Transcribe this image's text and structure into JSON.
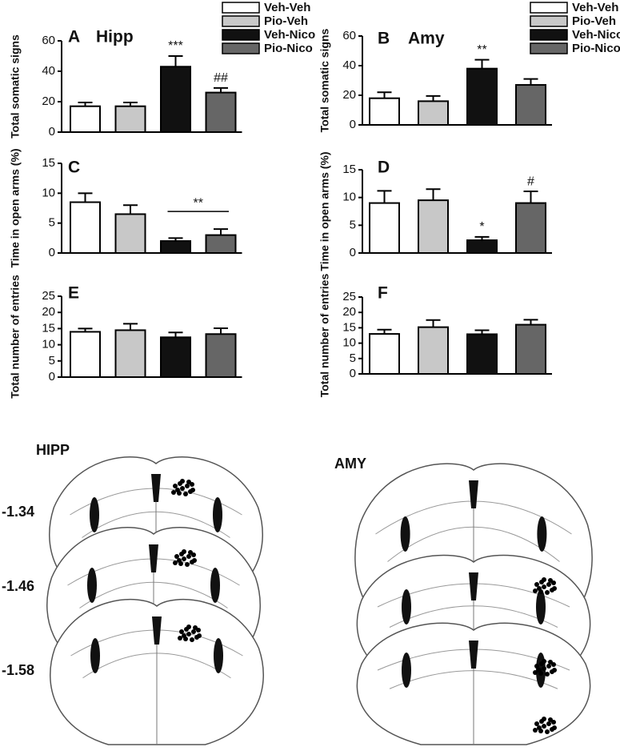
{
  "chart_data": [
    {
      "type": "bar",
      "panel": "A",
      "title": "Hipp",
      "ylabel": "Total somatic signs",
      "categories": [
        "Veh-Veh",
        "Pio-Veh",
        "Veh-Nico",
        "Pio-Nico"
      ],
      "legend": true,
      "colors": [
        "#ffffff",
        "#c8c8c8",
        "#111111",
        "#666666"
      ],
      "values": [
        17,
        17,
        43,
        26
      ],
      "errors": [
        2.5,
        2.5,
        7,
        3
      ],
      "value_annotations": [
        null,
        null,
        "***",
        "##"
      ],
      "ylim": [
        0,
        60
      ],
      "yticks": [
        0,
        20,
        40,
        60
      ]
    },
    {
      "type": "bar",
      "panel": "B",
      "title": "Amy",
      "ylabel": "Total somatic signs",
      "categories": [
        "Veh-Veh",
        "Pio-Veh",
        "Veh-Nico",
        "Pio-Nico"
      ],
      "legend": true,
      "colors": [
        "#ffffff",
        "#c8c8c8",
        "#111111",
        "#666666"
      ],
      "values": [
        18,
        16,
        38,
        27
      ],
      "errors": [
        4,
        3.5,
        6,
        4
      ],
      "value_annotations": [
        null,
        null,
        "**",
        null
      ],
      "ylim": [
        0,
        60
      ],
      "yticks": [
        0,
        20,
        40,
        60
      ]
    },
    {
      "type": "bar",
      "panel": "C",
      "ylabel": "Time in open arms (%)",
      "colors": [
        "#ffffff",
        "#c8c8c8",
        "#111111",
        "#666666"
      ],
      "values": [
        8.5,
        6.5,
        2,
        3
      ],
      "errors": [
        1.5,
        1.5,
        0.5,
        1
      ],
      "bracket": {
        "label": "**",
        "span": [
          2,
          3
        ]
      },
      "ylim": [
        0,
        15
      ],
      "yticks": [
        0,
        5,
        10,
        15
      ]
    },
    {
      "type": "bar",
      "panel": "D",
      "ylabel": "Time in open arms (%)",
      "colors": [
        "#ffffff",
        "#c8c8c8",
        "#111111",
        "#666666"
      ],
      "values": [
        9,
        9.5,
        2.3,
        9
      ],
      "errors": [
        2.2,
        2,
        0.6,
        2.1
      ],
      "value_annotations": [
        null,
        null,
        "*",
        "#"
      ],
      "ylim": [
        0,
        15
      ],
      "yticks": [
        0,
        5,
        10,
        15
      ]
    },
    {
      "type": "bar",
      "panel": "E",
      "ylabel": "Total number of entries",
      "colors": [
        "#ffffff",
        "#c8c8c8",
        "#111111",
        "#666666"
      ],
      "values": [
        14,
        14.5,
        12.3,
        13.3
      ],
      "errors": [
        1,
        2,
        1.5,
        1.8
      ],
      "ylim": [
        0,
        25
      ],
      "yticks": [
        0,
        5,
        10,
        15,
        20,
        25
      ]
    },
    {
      "type": "bar",
      "panel": "F",
      "ylabel": "Total number of entries",
      "colors": [
        "#ffffff",
        "#c8c8c8",
        "#111111",
        "#666666"
      ],
      "values": [
        13,
        15.2,
        12.9,
        16
      ],
      "errors": [
        1.4,
        2.3,
        1.3,
        1.6
      ],
      "ylim": [
        0,
        25
      ],
      "yticks": [
        0,
        5,
        10,
        15,
        20,
        25
      ]
    }
  ],
  "atlas": {
    "left_title": "HIPP",
    "right_title": "AMY",
    "levels": [
      "-1.34",
      "-1.46",
      "-1.58"
    ]
  }
}
